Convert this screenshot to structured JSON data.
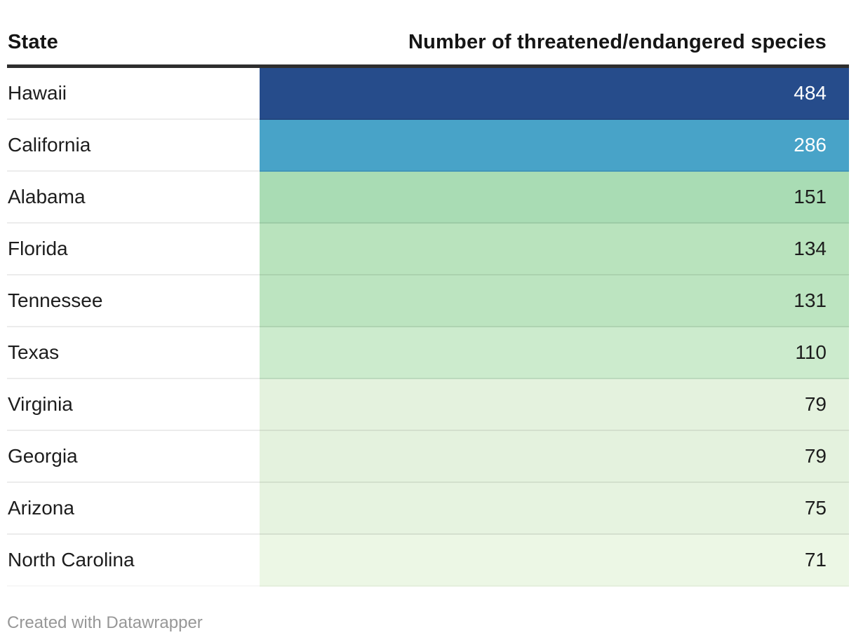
{
  "chart_data": {
    "type": "table",
    "columns": [
      "State",
      "Number of threatened/endangered species"
    ],
    "categories": [
      "Hawaii",
      "California",
      "Alabama",
      "Florida",
      "Tennessee",
      "Texas",
      "Virginia",
      "Georgia",
      "Arizona",
      "North Carolina"
    ],
    "values": [
      484,
      286,
      151,
      134,
      131,
      110,
      79,
      79,
      75,
      71
    ],
    "cell_colors": [
      "#264c8b",
      "#48a3c8",
      "#a9dcb4",
      "#b9e3bd",
      "#bce4c0",
      "#ccebcd",
      "#e4f2de",
      "#e4f2de",
      "#e6f3e0",
      "#ecf7e5"
    ],
    "value_text_colors": [
      "#ffffff",
      "#ffffff",
      "#1d1d1d",
      "#1d1d1d",
      "#1d1d1d",
      "#1d1d1d",
      "#1d1d1d",
      "#1d1d1d",
      "#1d1d1d",
      "#1d1d1d"
    ]
  },
  "footer": {
    "attribution": "Created with Datawrapper"
  }
}
